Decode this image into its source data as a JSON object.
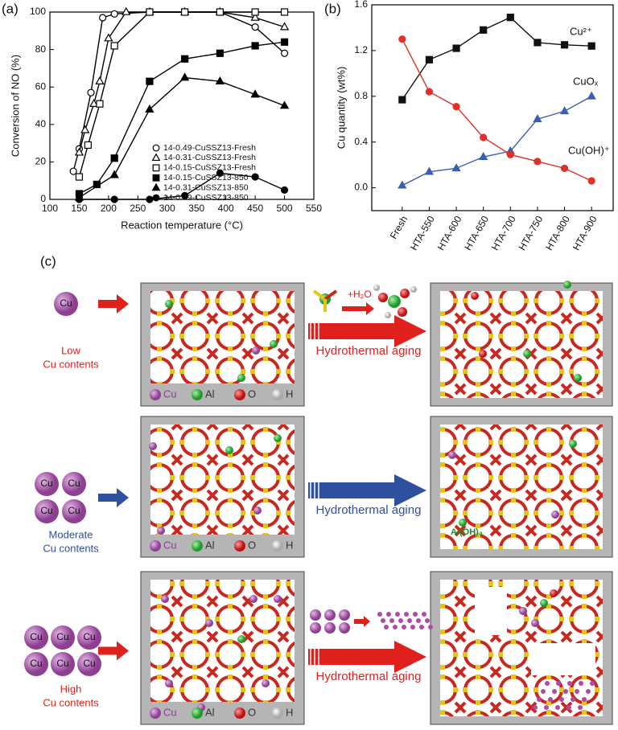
{
  "chart_data": [
    {
      "type": "line",
      "panel_label": "(a)",
      "xlabel": "Reaction temperature (°C)",
      "ylabel": "Conversion of NO (%)",
      "xlim": [
        100,
        550
      ],
      "xticks": [
        100,
        150,
        200,
        250,
        300,
        350,
        400,
        450,
        500,
        550
      ],
      "ylim": [
        0,
        100
      ],
      "yticks": [
        0,
        20,
        40,
        60,
        80,
        100
      ],
      "legend": "lower center",
      "series": [
        {
          "name": "14-0.49-CuSSZ13-Fresh",
          "color": "#000000",
          "marker": "circle",
          "filled": false,
          "x": [
            140,
            150,
            170,
            190,
            210,
            270,
            330,
            390,
            450,
            500
          ],
          "values": [
            15,
            27,
            57,
            97,
            99,
            100,
            100,
            100,
            92,
            78
          ]
        },
        {
          "name": "14-0.31-CuSSZ13-Fresh",
          "color": "#000000",
          "marker": "triangle",
          "filled": false,
          "x": [
            150,
            160,
            175,
            185,
            200,
            230,
            270,
            330,
            390,
            450,
            500
          ],
          "values": [
            25,
            37,
            51,
            63,
            86,
            100,
            100,
            100,
            100,
            97,
            92
          ]
        },
        {
          "name": "14-0.15-CuSSZ13-Fresh",
          "color": "#000000",
          "marker": "square",
          "filled": false,
          "x": [
            150,
            165,
            185,
            210,
            270,
            330,
            390,
            450,
            500
          ],
          "values": [
            12,
            29,
            51,
            82,
            100,
            100,
            100,
            100,
            100
          ]
        },
        {
          "name": "14-0.15-CuSSZ13-850",
          "color": "#000000",
          "marker": "square",
          "filled": true,
          "x": [
            150,
            180,
            210,
            270,
            330,
            390,
            450,
            500
          ],
          "values": [
            3,
            8,
            22,
            63,
            75,
            78,
            82,
            84
          ]
        },
        {
          "name": "14-0.31-CuSSZ13-850",
          "color": "#000000",
          "marker": "triangle",
          "filled": true,
          "x": [
            150,
            210,
            270,
            330,
            390,
            450,
            500
          ],
          "values": [
            1,
            13,
            48,
            65,
            63,
            56,
            50
          ]
        },
        {
          "name": "14-0.49-CuSSZ13-850",
          "color": "#000000",
          "marker": "circle",
          "filled": true,
          "x": [
            150,
            210,
            270,
            330,
            390,
            450,
            500
          ],
          "values": [
            0,
            0,
            0,
            2,
            14,
            12,
            5
          ]
        }
      ]
    },
    {
      "type": "line",
      "panel_label": "(b)",
      "ylabel": "Cu quantity (wt%)",
      "categories": [
        "Fresh",
        "HTA-550",
        "HTA-600",
        "HTA-650",
        "HTA-700",
        "HTA-750",
        "HTA-800",
        "HTA-900"
      ],
      "ylim": [
        -0.2,
        1.6
      ],
      "yticks": [
        {
          "value": 0,
          "label": "0.0"
        },
        0.4,
        0.8,
        1.2,
        1.6
      ],
      "series": [
        {
          "name": "Cu²⁺",
          "color": "#111111",
          "marker": "square",
          "filled": true,
          "values": [
            0.77,
            1.12,
            1.22,
            1.38,
            1.49,
            1.27,
            1.25,
            1.24
          ]
        },
        {
          "name": "CuOₓ",
          "color": "#3a5fb0",
          "marker": "triangle",
          "filled": true,
          "values": [
            0.02,
            0.14,
            0.17,
            0.27,
            0.32,
            0.6,
            0.67,
            0.8
          ]
        },
        {
          "name": "Cu(OH)⁺",
          "color": "#e0302a",
          "marker": "circle",
          "filled": true,
          "values": [
            1.3,
            0.84,
            0.71,
            0.44,
            0.29,
            0.23,
            0.17,
            0.06
          ]
        }
      ]
    }
  ],
  "diagram": {
    "panel_label": "(c)",
    "sphere_label": "Cu",
    "arrow_label": "Hydrothermal aging",
    "legend": [
      "Cu",
      "Al",
      "O",
      "H"
    ],
    "reactant_label": "+H₂O",
    "product_label": "Al(OH)₃",
    "rows": [
      {
        "lines": [
          "Low",
          "Cu contents"
        ],
        "color": "#e0201c"
      },
      {
        "lines": [
          "Moderate",
          "Cu contents"
        ],
        "color": "#2f4f9f"
      },
      {
        "lines": [
          "High",
          "Cu contents"
        ],
        "color": "#e0201c"
      }
    ]
  }
}
